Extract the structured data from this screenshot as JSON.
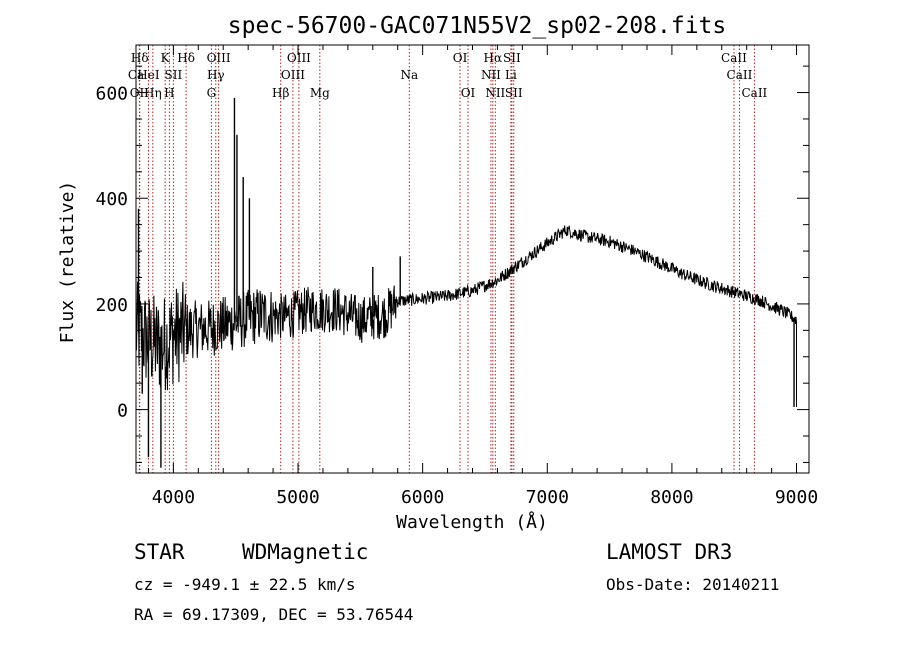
{
  "chart_data": {
    "type": "line",
    "title": "spec-56700-GAC071N55V2_sp02-208.fits",
    "xlabel": "Wavelength (Å)",
    "ylabel": "Flux (relative)",
    "xlim": [
      3700,
      9100
    ],
    "ylim": [
      -120,
      690
    ],
    "xticks": [
      4000,
      5000,
      6000,
      7000,
      8000,
      9000
    ],
    "yticks": [
      0,
      200,
      400,
      600
    ],
    "xtick_labels": [
      "4000",
      "5000",
      "6000",
      "7000",
      "8000",
      "9000"
    ],
    "ytick_labels": [
      "0",
      "200",
      "400",
      "600"
    ],
    "grid": false,
    "line_color": "#000000",
    "marker_color": "#b22222",
    "spectrum_anchors": [
      [
        3700,
        150
      ],
      [
        3800,
        130
      ],
      [
        3900,
        120
      ],
      [
        4000,
        140
      ],
      [
        4100,
        150
      ],
      [
        4300,
        155
      ],
      [
        4500,
        165
      ],
      [
        4700,
        180
      ],
      [
        4900,
        175
      ],
      [
        5100,
        190
      ],
      [
        5300,
        190
      ],
      [
        5500,
        170
      ],
      [
        5700,
        180
      ],
      [
        5800,
        205
      ],
      [
        6000,
        210
      ],
      [
        6200,
        215
      ],
      [
        6400,
        225
      ],
      [
        6600,
        245
      ],
      [
        6800,
        280
      ],
      [
        7000,
        315
      ],
      [
        7150,
        340
      ],
      [
        7300,
        328
      ],
      [
        7500,
        318
      ],
      [
        7700,
        300
      ],
      [
        7900,
        278
      ],
      [
        8100,
        255
      ],
      [
        8300,
        237
      ],
      [
        8500,
        222
      ],
      [
        8700,
        208
      ],
      [
        8900,
        185
      ],
      [
        9000,
        170
      ]
    ],
    "spectrum_spikes": [
      [
        4490,
        590
      ],
      [
        4510,
        520
      ],
      [
        4560,
        440
      ],
      [
        4610,
        400
      ],
      [
        3720,
        380
      ],
      [
        5820,
        290
      ],
      [
        5600,
        270
      ],
      [
        3750,
        30
      ],
      [
        3800,
        -90
      ],
      [
        3900,
        -110
      ],
      [
        8980,
        5
      ]
    ],
    "lines": [
      {
        "name": "Hδ",
        "wavelength": 3730,
        "row": 0
      },
      {
        "name": "OII",
        "wavelength": 3727,
        "row": 2
      },
      {
        "name": "Ca",
        "wavelength": 3700,
        "row": 1
      },
      {
        "name": "Hη",
        "wavelength": 3835,
        "row": 2
      },
      {
        "name": "HeI",
        "wavelength": 3800,
        "row": 1
      },
      {
        "name": "K",
        "wavelength": 3934,
        "row": 0
      },
      {
        "name": "SII",
        "wavelength": 4000,
        "row": 1
      },
      {
        "name": "H",
        "wavelength": 3968,
        "row": 2
      },
      {
        "name": "Hδ",
        "wavelength": 4102,
        "row": 0
      },
      {
        "name": "OIII",
        "wavelength": 4363,
        "row": 0
      },
      {
        "name": "Hγ",
        "wavelength": 4340,
        "row": 1
      },
      {
        "name": "G",
        "wavelength": 4305,
        "row": 2
      },
      {
        "name": "OIII",
        "wavelength": 5007,
        "row": 0
      },
      {
        "name": "OIII",
        "wavelength": 4959,
        "row": 1
      },
      {
        "name": "Hβ",
        "wavelength": 4861,
        "row": 2
      },
      {
        "name": "Mg",
        "wavelength": 5175,
        "row": 2
      },
      {
        "name": "Na",
        "wavelength": 5893,
        "row": 1
      },
      {
        "name": "OI",
        "wavelength": 6300,
        "row": 0
      },
      {
        "name": "OI",
        "wavelength": 6364,
        "row": 2
      },
      {
        "name": "Hα",
        "wavelength": 6563,
        "row": 0
      },
      {
        "name": "SII",
        "wavelength": 6716,
        "row": 0
      },
      {
        "name": "NII",
        "wavelength": 6548,
        "row": 1
      },
      {
        "name": "Li",
        "wavelength": 6708,
        "row": 1
      },
      {
        "name": "NII",
        "wavelength": 6583,
        "row": 2
      },
      {
        "name": "SII",
        "wavelength": 6731,
        "row": 2
      },
      {
        "name": "CaII",
        "wavelength": 8498,
        "row": 0
      },
      {
        "name": "CaII",
        "wavelength": 8542,
        "row": 1
      },
      {
        "name": "CaII",
        "wavelength": 8662,
        "row": 2
      }
    ]
  },
  "info": {
    "object_class": "STAR",
    "subclass": "WDMagnetic",
    "survey": "LAMOST DR3",
    "cz": "cz = -949.1 ± 22.5 km/s",
    "obs_date": "Obs-Date: 20140211",
    "coords": "RA =  69.17309, DEC =  53.76544"
  }
}
